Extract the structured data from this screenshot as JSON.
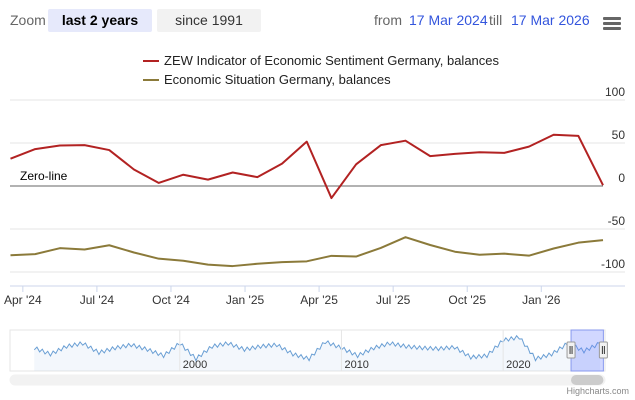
{
  "toolbar": {
    "zoom_label": "Zoom",
    "buttons": [
      {
        "label": "last 2 years",
        "active": true
      },
      {
        "label": "since 1991",
        "active": false
      }
    ],
    "from_label": "from",
    "from_value": "17 Mar 2024",
    "till_label": "till",
    "till_value": "17 Mar 2026",
    "menu_icon": "hamburger-menu-icon"
  },
  "legend": [
    {
      "name": "ZEW Indicator of Economic Sentiment Germany, balances",
      "color": "#b22222"
    },
    {
      "name": "Economic Situation Germany, balances",
      "color": "#8b7a3a"
    }
  ],
  "chart_data": {
    "type": "line",
    "y_axis": {
      "range": [
        -100,
        100
      ],
      "ticks": [
        "100",
        "50",
        "0",
        "-50",
        "-100"
      ],
      "position": "right"
    },
    "x_axis": {
      "ticks": [
        "Apr '24",
        "Jul '24",
        "Oct '24",
        "Jan '25",
        "Apr '25",
        "Jul '25",
        "Oct '25",
        "Jan '26"
      ]
    },
    "plot_line": {
      "value": 0,
      "label": "Zero-line"
    },
    "grid": true,
    "series": [
      {
        "name": "ZEW Indicator of Economic Sentiment Germany, balances",
        "color": "#b22222",
        "x": [
          "2024-03",
          "2024-04",
          "2024-05",
          "2024-06",
          "2024-07",
          "2024-08",
          "2024-09",
          "2024-10",
          "2024-11",
          "2024-12",
          "2025-01",
          "2025-02",
          "2025-03",
          "2025-04",
          "2025-05",
          "2025-06",
          "2025-07",
          "2025-08",
          "2025-09",
          "2025-10",
          "2025-11",
          "2025-12",
          "2026-01",
          "2026-02",
          "2026-03"
        ],
        "values": [
          31.7,
          42.9,
          47.1,
          47.5,
          41.8,
          19.2,
          3.6,
          13.1,
          7.4,
          15.7,
          10.3,
          26.0,
          51.6,
          -14.0,
          25.2,
          47.5,
          52.7,
          34.7,
          37.3,
          39.3,
          38.5,
          45.8,
          59.6,
          58.3,
          1.0
        ]
      },
      {
        "name": "Economic Situation Germany, balances",
        "color": "#8b7a3a",
        "x": [
          "2024-03",
          "2024-04",
          "2024-05",
          "2024-06",
          "2024-07",
          "2024-08",
          "2024-09",
          "2024-10",
          "2024-11",
          "2024-12",
          "2025-01",
          "2025-02",
          "2025-03",
          "2025-04",
          "2025-05",
          "2025-06",
          "2025-07",
          "2025-08",
          "2025-09",
          "2025-10",
          "2025-11",
          "2025-12",
          "2026-01",
          "2026-02",
          "2026-03"
        ],
        "values": [
          -80.5,
          -79.2,
          -72.3,
          -73.8,
          -68.9,
          -77.3,
          -84.5,
          -86.9,
          -91.4,
          -93.1,
          -90.4,
          -88.5,
          -87.6,
          -81.2,
          -82.0,
          -72.0,
          -59.5,
          -68.6,
          -76.4,
          -80.0,
          -78.7,
          -81.0,
          -72.7,
          -65.9,
          -62.9
        ]
      }
    ]
  },
  "navigator": {
    "x_ticks": [
      "2000",
      "2010",
      "2020"
    ],
    "series_color": "#6a9fd4",
    "x": [
      1991,
      1992,
      1993,
      1994,
      1995,
      1996,
      1997,
      1998,
      1999,
      2000,
      2001,
      2002,
      2003,
      2004,
      2005,
      2006,
      2007,
      2008,
      2009,
      2010,
      2011,
      2012,
      2013,
      2014,
      2015,
      2016,
      2017,
      2018,
      2019,
      2020,
      2021,
      2022,
      2023,
      2024,
      2025,
      2026
    ],
    "values": [
      10,
      -30,
      20,
      40,
      -20,
      10,
      30,
      0,
      -40,
      40,
      -60,
      20,
      40,
      0,
      20,
      30,
      -30,
      -60,
      50,
      10,
      -40,
      10,
      40,
      20,
      10,
      5,
      15,
      -50,
      -40,
      60,
      80,
      -60,
      -30,
      40,
      -10,
      40
    ],
    "selected_range": [
      "17 Mar 2024",
      "17 Mar 2026"
    ]
  },
  "credits": "Highcharts.com"
}
